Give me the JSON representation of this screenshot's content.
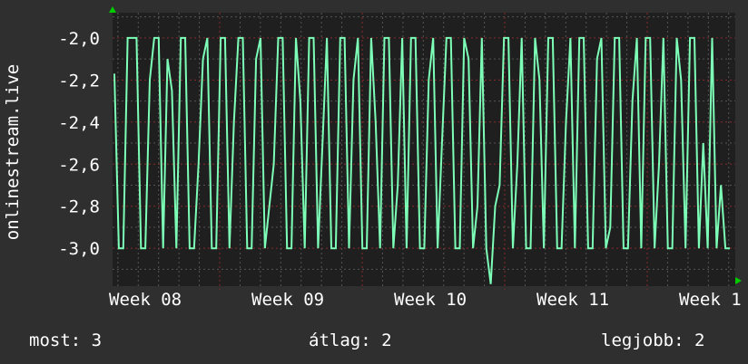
{
  "chart_data": {
    "type": "line",
    "ylabel": "onlinestream.live",
    "xlabel": "",
    "title": "",
    "ylim": [
      -3.18,
      -1.88
    ],
    "yticks": [
      "-2,0",
      "-2,2",
      "-2,4",
      "-2,6",
      "-2,8",
      "-3,0"
    ],
    "ytick_values": [
      -2.0,
      -2.2,
      -2.4,
      -2.6,
      -2.8,
      -3.0
    ],
    "xticks": [
      "Week 08",
      "Week 09",
      "Week 10",
      "Week 11",
      "Week 1"
    ],
    "grid": true,
    "colors": {
      "background": "#2f2f2f",
      "plot": "#1f1f1f",
      "line": "#7dffb8",
      "major_grid": "#8a2a2a",
      "minor_grid": "#555555",
      "arrow": "#00cc00"
    },
    "series": [
      {
        "values": [
          -2.17,
          -3,
          -3,
          -2,
          -2,
          -2,
          -3,
          -3,
          -2.2,
          -2,
          -2,
          -3,
          -2.1,
          -2.25,
          -3,
          -2,
          -2,
          -3,
          -3,
          -2.6,
          -2.1,
          -2,
          -3,
          -3,
          -2,
          -2,
          -3,
          -2.4,
          -2,
          -2,
          -3,
          -3,
          -2.1,
          -2,
          -3,
          -2.8,
          -2.6,
          -2,
          -2,
          -3,
          -3,
          -2,
          -2.3,
          -3,
          -2,
          -2,
          -3,
          -2.5,
          -2,
          -3,
          -3,
          -2,
          -2,
          -3,
          -2.2,
          -2,
          -3,
          -3,
          -2,
          -2.4,
          -3,
          -2,
          -2,
          -3,
          -2.7,
          -2,
          -3,
          -2,
          -2,
          -3,
          -3,
          -2.2,
          -2,
          -3,
          -2.5,
          -2,
          -2,
          -3,
          -3,
          -2,
          -2.1,
          -3,
          -2.8,
          -2,
          -3,
          -3.17,
          -2.8,
          -2.7,
          -2,
          -2,
          -3,
          -2.6,
          -2,
          -3,
          -3,
          -2,
          -2.2,
          -3,
          -2,
          -2,
          -3,
          -3,
          -2.4,
          -2,
          -3,
          -2,
          -2,
          -3,
          -3,
          -2.1,
          -2,
          -3,
          -2.9,
          -2,
          -2,
          -3,
          -3,
          -2.3,
          -2,
          -3,
          -2,
          -2,
          -3,
          -2.6,
          -2,
          -3,
          -3,
          -2,
          -2.2,
          -3,
          -2,
          -2,
          -3,
          -2.5,
          -3,
          -2,
          -3,
          -2.7,
          -3,
          -3
        ]
      }
    ]
  },
  "legend": {
    "current": "most: 3",
    "average": "átlag: 2",
    "max": "legjobb: 2"
  }
}
